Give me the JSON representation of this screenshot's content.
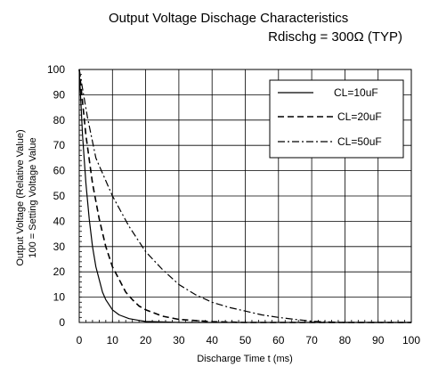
{
  "chart_data": {
    "type": "line",
    "title": "Output Voltage Dischage Characteristics",
    "subtitle": "Rdischg = 300Ω (TYP)",
    "xlabel": "Discharge Time t (ms)",
    "ylabel_line1": "Output Voltage (Relative Value)",
    "ylabel_line2": "100 = Setting Voltage Value",
    "xlim": [
      0,
      100
    ],
    "ylim": [
      0,
      100
    ],
    "xticks": [
      0,
      10,
      20,
      30,
      40,
      50,
      60,
      70,
      80,
      90,
      100
    ],
    "yticks": [
      0,
      10,
      20,
      30,
      40,
      50,
      60,
      70,
      80,
      90,
      100
    ],
    "grid": true,
    "legend_position": "top-right",
    "series": [
      {
        "name": "CL=10uF",
        "style": "solid",
        "x": [
          0,
          1,
          2,
          3,
          4,
          5,
          6,
          7,
          8,
          10,
          12,
          15,
          18,
          20,
          25,
          30,
          100
        ],
        "y": [
          100,
          74,
          55,
          41,
          30,
          22,
          17,
          12,
          9,
          5,
          3,
          1.5,
          0.8,
          0.4,
          0.2,
          0,
          0
        ]
      },
      {
        "name": "CL=20uF",
        "style": "dashed",
        "x": [
          0,
          2,
          4,
          6,
          8,
          10,
          12,
          14,
          16,
          18,
          20,
          25,
          30,
          40,
          50,
          60,
          100
        ],
        "y": [
          100,
          74,
          55,
          41,
          30,
          22,
          17,
          12,
          9,
          6.5,
          5,
          2.5,
          1.2,
          0.3,
          0,
          0,
          0
        ]
      },
      {
        "name": "CL=50uF",
        "style": "dashdot",
        "x": [
          0,
          2.5,
          5,
          10,
          15,
          20,
          25,
          30,
          35,
          40,
          45,
          50,
          55,
          60,
          65,
          70,
          75,
          80,
          100
        ],
        "y": [
          100,
          81,
          65,
          50,
          38,
          28,
          21,
          15,
          11,
          8,
          6,
          4.5,
          3,
          2,
          1.2,
          0.5,
          0.2,
          0,
          0
        ]
      }
    ]
  }
}
